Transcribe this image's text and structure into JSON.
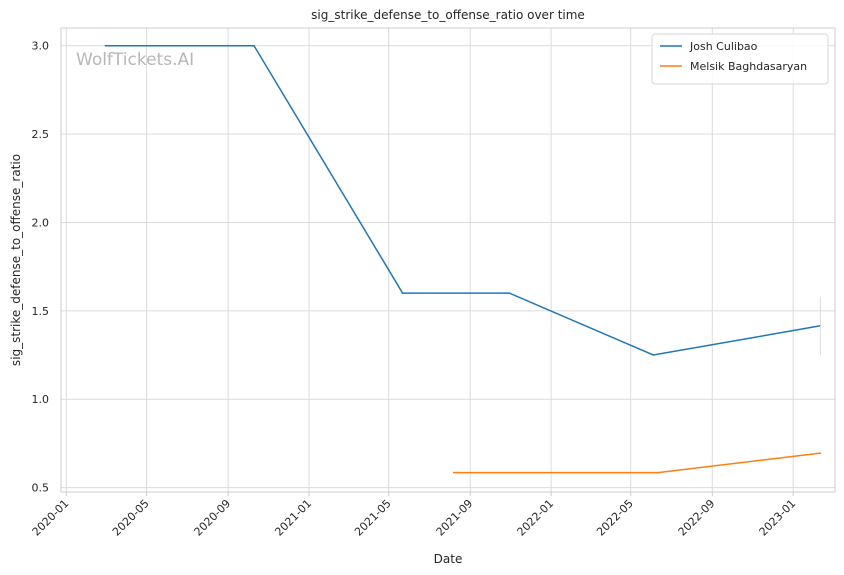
{
  "chart_data": {
    "type": "line",
    "title": "sig_strike_defense_to_offense_ratio over time",
    "xlabel": "Date",
    "ylabel": "sig_strike_defense_to_offense_ratio",
    "watermark": "WolfTickets.AI",
    "x_ticks": [
      "2020-01",
      "2020-05",
      "2020-09",
      "2021-01",
      "2021-05",
      "2021-09",
      "2022-01",
      "2022-05",
      "2022-09",
      "2023-01"
    ],
    "y_ticks": [
      "0.5",
      "1.0",
      "1.5",
      "2.0",
      "2.5",
      "3.0"
    ],
    "xlim": [
      "2019-12-24",
      "2023-03-05"
    ],
    "ylim": [
      0.475,
      3.1
    ],
    "grid": true,
    "legend_position": "top-right",
    "series": [
      {
        "name": "Josh Culibao",
        "color": "#1f77b4",
        "points": [
          {
            "x": "2020-02-29",
            "y": 3.0
          },
          {
            "x": "2020-10-10",
            "y": 3.0
          },
          {
            "x": "2021-05-22",
            "y": 1.6
          },
          {
            "x": "2021-10-30",
            "y": 1.6
          },
          {
            "x": "2022-06-04",
            "y": 1.25
          },
          {
            "x": "2023-02-11",
            "y": 1.415
          }
        ],
        "error_bar": {
          "x": "2023-02-11",
          "low": 1.25,
          "high": 1.58
        }
      },
      {
        "name": "Melsik Baghdasaryan",
        "color": "#ff7f0e",
        "points": [
          {
            "x": "2021-08-07",
            "y": 0.585
          },
          {
            "x": "2022-06-11",
            "y": 0.585
          },
          {
            "x": "2023-02-11",
            "y": 0.695
          }
        ]
      }
    ]
  }
}
